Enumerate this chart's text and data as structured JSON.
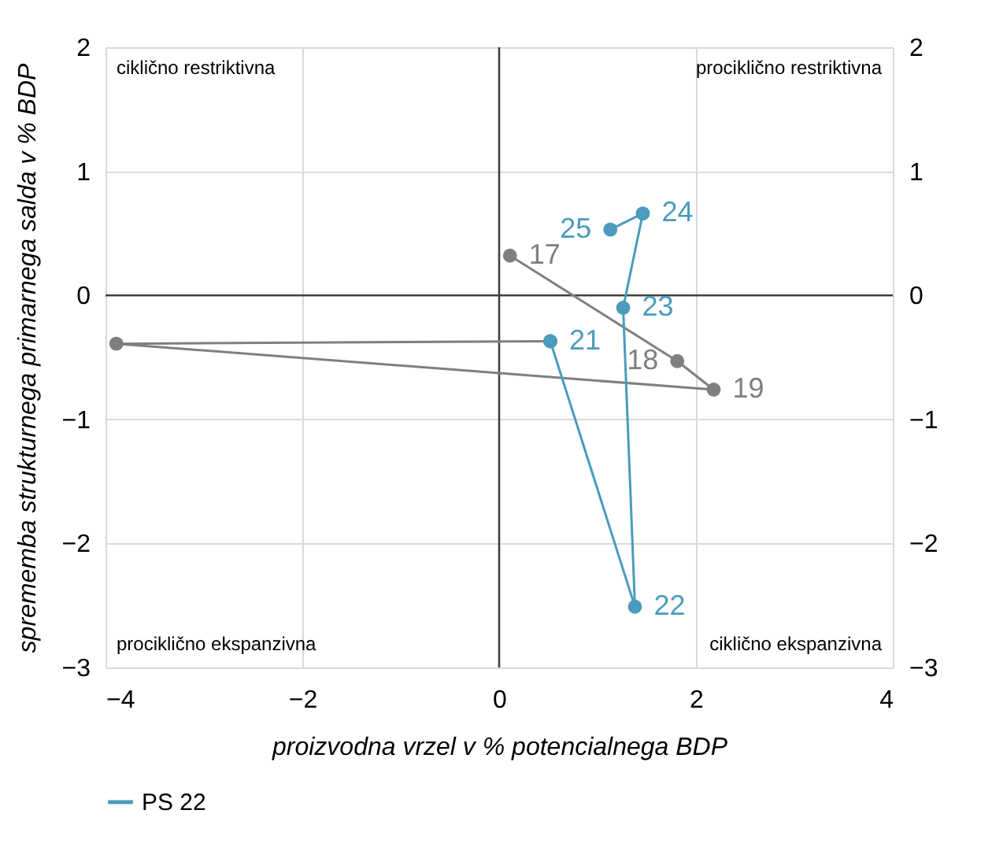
{
  "chart_data": {
    "type": "line",
    "xlabel": "proizvodna vrzel v % potencialnega BDP",
    "ylabel": "sprememba strukturnega primarnega salda v % BDP",
    "xlim": [
      -4,
      4
    ],
    "xticks": [
      -4,
      -2,
      0,
      2,
      4
    ],
    "ylim": [
      -3,
      2
    ],
    "yticks": [
      -3,
      -2,
      -1,
      0,
      1,
      2
    ],
    "y2lim": [
      -3,
      2
    ],
    "y2ticks": [
      -3,
      -2,
      -1,
      0,
      1,
      2
    ],
    "grid": true,
    "marker": "circle",
    "legend": "bottom",
    "series": [
      {
        "color": "#7f7f7f",
        "x": [
          0.11,
          1.81,
          2.18,
          -3.89,
          0.52
        ],
        "values": [
          0.32,
          -0.53,
          -0.76,
          -0.39,
          -0.37
        ]
      },
      {
        "name": "PS 22",
        "color": "#4a9bbd",
        "x": [
          0.52,
          1.38,
          1.26,
          1.46,
          1.13
        ],
        "values": [
          -0.37,
          -2.51,
          -0.1,
          0.66,
          0.53
        ]
      }
    ],
    "annotations": [
      "ciklično restriktivna",
      "prociklično restriktivna",
      "prociklično ekspanzivna",
      "ciklično ekspanzivna",
      {
        "text": "17",
        "x": 0.11,
        "y": 0.32
      },
      {
        "text": "18",
        "x": 1.81,
        "y": -0.53
      },
      {
        "text": "19",
        "x": 2.18,
        "y": -0.76
      },
      {
        "text": "21",
        "x": 0.52,
        "y": -0.37
      },
      {
        "text": "22",
        "x": 1.38,
        "y": -2.51
      },
      {
        "text": "23",
        "x": 1.26,
        "y": -0.1
      },
      {
        "text": "24",
        "x": 1.46,
        "y": 0.66
      },
      {
        "text": "25",
        "x": 1.13,
        "y": 0.53
      }
    ]
  }
}
